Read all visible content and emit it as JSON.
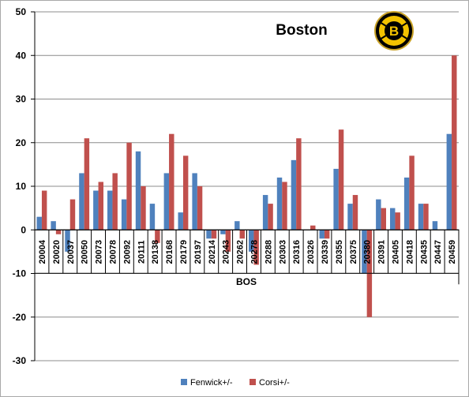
{
  "chart_data": {
    "type": "bar",
    "title": "Boston",
    "xlabel": "BOS",
    "ylabel": "",
    "ylim": [
      -30,
      50
    ],
    "yticks": [
      50,
      40,
      30,
      20,
      10,
      0,
      -10,
      -20,
      -30
    ],
    "grid": "horizontal",
    "legend": "bottom",
    "categories": [
      "20004",
      "20020",
      "20037",
      "20050",
      "20073",
      "20078",
      "20092",
      "20111",
      "20138",
      "20168",
      "20179",
      "20197",
      "20214",
      "20243",
      "20262",
      "20278",
      "20288",
      "20303",
      "20316",
      "20326",
      "20339",
      "20355",
      "20375",
      "20380",
      "20391",
      "20405",
      "20418",
      "20435",
      "20447",
      "20459"
    ],
    "series": [
      {
        "name": "Fenwick+/-",
        "color": "#4f81bd",
        "values": [
          3,
          2,
          -5,
          13,
          9,
          9,
          7,
          18,
          6,
          13,
          4,
          13,
          -2,
          -1,
          2,
          -5,
          8,
          12,
          16,
          0,
          -2,
          14,
          6,
          -10,
          7,
          5,
          12,
          6,
          2,
          22
        ]
      },
      {
        "name": "Corsi+/-",
        "color": "#c0504d",
        "values": [
          9,
          -1,
          7,
          21,
          11,
          13,
          20,
          10,
          -3,
          22,
          17,
          10,
          -2,
          -5,
          -2,
          -8,
          6,
          11,
          21,
          1,
          -2,
          23,
          8,
          -20,
          5,
          4,
          17,
          6,
          0,
          40
        ]
      }
    ]
  },
  "logo": {
    "name": "Boston Bruins logo",
    "letter": "B"
  }
}
